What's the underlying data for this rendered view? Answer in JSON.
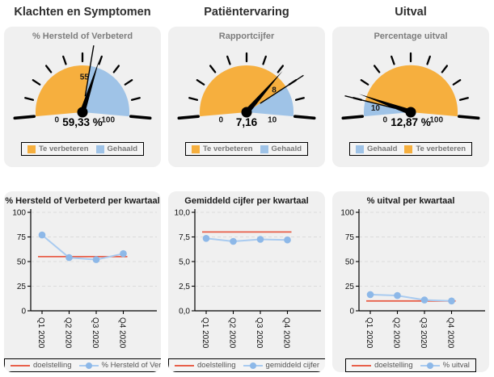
{
  "colors": {
    "orange": "#F6AF3E",
    "blue": "#9FC3E7",
    "target_red": "#E8604A",
    "series_blue": "#A9CBF0",
    "marker_blue": "#8DB8E8",
    "panel_bg": "#F0F0F0"
  },
  "columns": [
    {
      "header": "Klachten en Symptomen"
    },
    {
      "header": "Patiëntervaring"
    },
    {
      "header": "Uitval"
    }
  ],
  "chart_data": [
    {
      "type": "gauge",
      "title": "% Hersteld of Verbeterd",
      "min": 0,
      "max": 100,
      "threshold": 55,
      "value": 59.33,
      "value_label": "59,33 %",
      "min_label": "0",
      "max_label": "100",
      "threshold_label": "55",
      "segments": [
        {
          "label": "Te verbeteren",
          "from": 0,
          "to": 55,
          "color": "#F6AF3E"
        },
        {
          "label": "Gehaald",
          "from": 55,
          "to": 100,
          "color": "#9FC3E7"
        }
      ]
    },
    {
      "type": "gauge",
      "title": "Rapportcijfer",
      "min": 0,
      "max": 10,
      "threshold": 8,
      "value": 7.16,
      "value_label": "7,16",
      "min_label": "0",
      "max_label": "10",
      "threshold_label": "8",
      "segments": [
        {
          "label": "Te verbeteren",
          "from": 0,
          "to": 8,
          "color": "#F6AF3E"
        },
        {
          "label": "Gehaald",
          "from": 8,
          "to": 10,
          "color": "#9FC3E7"
        }
      ]
    },
    {
      "type": "gauge",
      "title": "Percentage uitval",
      "min": 0,
      "max": 100,
      "threshold": 10,
      "value": 12.87,
      "value_label": "12,87 %",
      "min_label": "0",
      "max_label": "100",
      "threshold_label": "10",
      "segments": [
        {
          "label": "Gehaald",
          "from": 0,
          "to": 10,
          "color": "#9FC3E7"
        },
        {
          "label": "Te verbeteren",
          "from": 10,
          "to": 100,
          "color": "#F6AF3E"
        }
      ]
    },
    {
      "type": "line",
      "title": "% Hersteld of Verbeterd per kwartaal",
      "categories": [
        "Q1 2020",
        "Q2 2020",
        "Q3 2020",
        "Q4 2020"
      ],
      "ylim": [
        0,
        100
      ],
      "yticks": [
        0,
        25,
        50,
        75,
        100
      ],
      "ytick_labels": [
        "0",
        "25",
        "50",
        "75",
        "100"
      ],
      "grid": "dashed",
      "legend_position": "bottom",
      "series": [
        {
          "name": "doelstelling",
          "marker": false,
          "color": "#E8604A",
          "values": [
            55,
            55,
            55,
            55
          ]
        },
        {
          "name": "% Hersteld of Verbeterd",
          "marker": true,
          "color": "#A9CBF0",
          "marker_color": "#8DB8E8",
          "values": [
            77,
            54,
            52,
            58
          ]
        }
      ]
    },
    {
      "type": "line",
      "title": "Gemiddeld cijfer per kwartaal",
      "categories": [
        "Q1 2020",
        "Q2 2020",
        "Q3 2020",
        "Q4 2020"
      ],
      "ylim": [
        0,
        10
      ],
      "yticks": [
        0,
        2.5,
        5,
        7.5,
        10
      ],
      "ytick_labels": [
        "0,0",
        "2,5",
        "5,0",
        "7,5",
        "10,0"
      ],
      "grid": "dashed",
      "legend_position": "bottom",
      "series": [
        {
          "name": "doelstelling",
          "marker": false,
          "color": "#E8604A",
          "values": [
            8,
            8,
            8,
            8
          ]
        },
        {
          "name": "gemiddeld cijfer",
          "marker": true,
          "color": "#A9CBF0",
          "marker_color": "#8DB8E8",
          "values": [
            7.35,
            7.05,
            7.25,
            7.2
          ]
        }
      ]
    },
    {
      "type": "line",
      "title": "% uitval per kwartaal",
      "categories": [
        "Q1 2020",
        "Q2 2020",
        "Q3 2020",
        "Q4 2020"
      ],
      "ylim": [
        0,
        100
      ],
      "yticks": [
        0,
        25,
        50,
        75,
        100
      ],
      "ytick_labels": [
        "0",
        "25",
        "50",
        "75",
        "100"
      ],
      "grid": "dashed",
      "legend_position": "bottom",
      "series": [
        {
          "name": "doelstelling",
          "marker": false,
          "color": "#E8604A",
          "values": [
            10,
            10,
            10,
            10
          ]
        },
        {
          "name": "% uitval",
          "marker": true,
          "color": "#A9CBF0",
          "marker_color": "#8DB8E8",
          "values": [
            16.5,
            15.5,
            11,
            10
          ]
        }
      ]
    }
  ]
}
